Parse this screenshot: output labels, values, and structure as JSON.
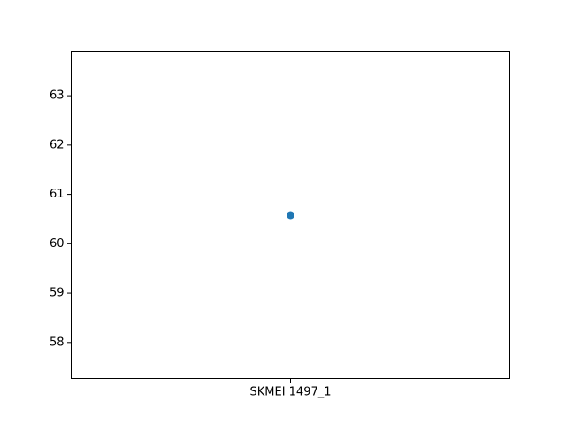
{
  "chart_data": {
    "type": "scatter",
    "title": "",
    "xlabel": "",
    "ylabel": "",
    "categories": [
      "SKMEI 1497_1"
    ],
    "series": [
      {
        "values": [
          60.58
        ]
      }
    ],
    "ylim": [
      57.27,
      63.89
    ],
    "yticks": [
      "58",
      "59",
      "60",
      "61",
      "62",
      "63"
    ],
    "grid": false,
    "legend": "none",
    "colors": {
      "marker": "#1f77b4",
      "axes": "#000000",
      "background": "#ffffff"
    }
  }
}
